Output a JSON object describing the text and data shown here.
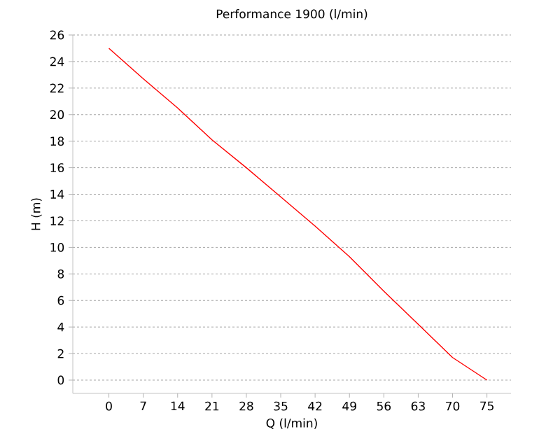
{
  "chart_data": {
    "type": "line",
    "title": "Performance  1900 (l/min)",
    "xlabel": "Q (l/min)",
    "ylabel": "H (m)",
    "categories": [
      "0",
      "7",
      "14",
      "21",
      "28",
      "35",
      "42",
      "49",
      "56",
      "63",
      "70",
      "75"
    ],
    "series": [
      {
        "color": "#ff0000",
        "values": [
          25,
          22.7,
          20.5,
          18.1,
          16,
          13.8,
          11.6,
          9.3,
          6.7,
          4.2,
          1.7,
          0
        ]
      }
    ],
    "ylim": [
      -1,
      26
    ],
    "yticks": [
      0,
      2,
      4,
      6,
      8,
      10,
      12,
      14,
      16,
      18,
      20,
      22,
      24,
      26
    ],
    "grid": "y"
  }
}
